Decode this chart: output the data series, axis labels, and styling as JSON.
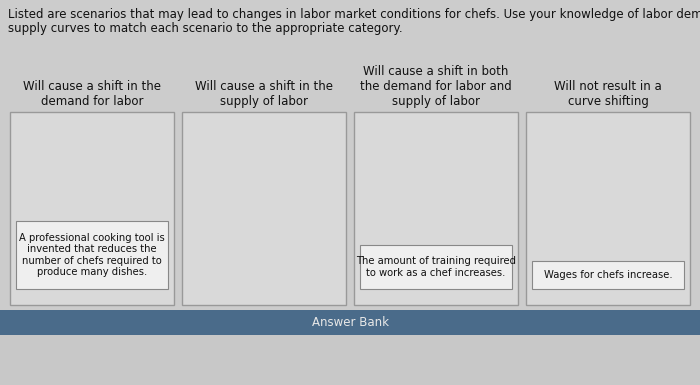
{
  "title_line1": "Listed are scenarios that may lead to changes in labor market conditions for chefs. Use your knowledge of labor demand and",
  "title_line2": "supply curves to match each scenario to the appropriate category.",
  "columns": [
    {
      "header": "Will cause a shift in the\ndemand for labor",
      "card_text": "A professional cooking tool is\ninvented that reduces the\nnumber of chefs required to\nproduce many dishes."
    },
    {
      "header": "Will cause a shift in the\nsupply of labor",
      "card_text": null
    },
    {
      "header": "Will cause a shift in both\nthe demand for labor and\nsupply of labor",
      "card_text": "The amount of training required\nto work as a chef increases."
    },
    {
      "header": "Will not result in a\ncurve shifting",
      "card_text": "Wages for chefs increase."
    }
  ],
  "answer_bank_label": "Answer Bank",
  "bg_color": "#cccccc",
  "box_bg_color": "#d9d9d9",
  "box_border_color": "#999999",
  "card_bg_color": "#efefef",
  "card_border_color": "#888888",
  "answer_bank_bg": "#4a6b8a",
  "answer_bank_text_color": "#e8e8e8",
  "answer_bank_bottom_color": "#c8c8c8",
  "title_fontsize": 8.5,
  "header_fontsize": 8.5,
  "card_fontsize": 7.2
}
